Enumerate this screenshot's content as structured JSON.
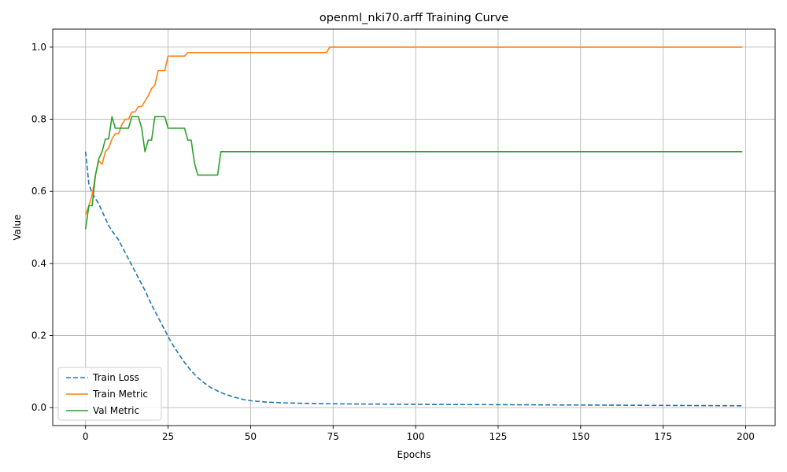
{
  "chart_data": {
    "type": "line",
    "title": "openml_nki70.arff Training Curve",
    "xlabel": "Epochs",
    "ylabel": "Value",
    "xlim": [
      -9.95,
      208.95
    ],
    "ylim": [
      -0.05,
      1.05
    ],
    "xticks": [
      0,
      25,
      50,
      75,
      100,
      125,
      150,
      175,
      200
    ],
    "yticks": [
      0.0,
      0.2,
      0.4,
      0.6,
      0.8,
      1.0
    ],
    "grid": true,
    "legend_position": "lower-left",
    "series": [
      {
        "name": "Train Loss",
        "color": "#1f77b4",
        "dash": "dashed",
        "points": [
          [
            0,
            0.71
          ],
          [
            1,
            0.62
          ],
          [
            2,
            0.595
          ],
          [
            3,
            0.58
          ],
          [
            4,
            0.565
          ],
          [
            5,
            0.545
          ],
          [
            6,
            0.525
          ],
          [
            7,
            0.505
          ],
          [
            8,
            0.49
          ],
          [
            9,
            0.478
          ],
          [
            10,
            0.465
          ],
          [
            12,
            0.43
          ],
          [
            14,
            0.395
          ],
          [
            16,
            0.36
          ],
          [
            18,
            0.325
          ],
          [
            20,
            0.285
          ],
          [
            22,
            0.25
          ],
          [
            24,
            0.215
          ],
          [
            26,
            0.18
          ],
          [
            28,
            0.152
          ],
          [
            30,
            0.125
          ],
          [
            32,
            0.102
          ],
          [
            34,
            0.083
          ],
          [
            36,
            0.068
          ],
          [
            38,
            0.055
          ],
          [
            40,
            0.046
          ],
          [
            42,
            0.038
          ],
          [
            45,
            0.029
          ],
          [
            48,
            0.022
          ],
          [
            50,
            0.019
          ],
          [
            55,
            0.015
          ],
          [
            60,
            0.013
          ],
          [
            70,
            0.011
          ],
          [
            80,
            0.01
          ],
          [
            100,
            0.009
          ],
          [
            125,
            0.008
          ],
          [
            150,
            0.007
          ],
          [
            175,
            0.006
          ],
          [
            199,
            0.005
          ]
        ]
      },
      {
        "name": "Train Metric",
        "color": "#ff7f0e",
        "dash": "solid",
        "points": [
          [
            0,
            0.535
          ],
          [
            1,
            0.56
          ],
          [
            2,
            0.59
          ],
          [
            3,
            0.645
          ],
          [
            4,
            0.685
          ],
          [
            5,
            0.675
          ],
          [
            6,
            0.71
          ],
          [
            7,
            0.72
          ],
          [
            8,
            0.745
          ],
          [
            9,
            0.76
          ],
          [
            10,
            0.76
          ],
          [
            11,
            0.785
          ],
          [
            12,
            0.8
          ],
          [
            13,
            0.8
          ],
          [
            14,
            0.82
          ],
          [
            15,
            0.82
          ],
          [
            16,
            0.835
          ],
          [
            17,
            0.835
          ],
          [
            18,
            0.85
          ],
          [
            19,
            0.865
          ],
          [
            20,
            0.885
          ],
          [
            21,
            0.895
          ],
          [
            22,
            0.935
          ],
          [
            23,
            0.935
          ],
          [
            24,
            0.935
          ],
          [
            25,
            0.975
          ],
          [
            26,
            0.975
          ],
          [
            27,
            0.975
          ],
          [
            28,
            0.975
          ],
          [
            29,
            0.975
          ],
          [
            30,
            0.975
          ],
          [
            31,
            0.985
          ],
          [
            32,
            0.985
          ],
          [
            73,
            0.985
          ],
          [
            74,
            1.0
          ],
          [
            199,
            1.0
          ]
        ]
      },
      {
        "name": "Val Metric",
        "color": "#2ca02c",
        "dash": "solid",
        "points": [
          [
            0,
            0.495
          ],
          [
            1,
            0.56
          ],
          [
            2,
            0.56
          ],
          [
            3,
            0.645
          ],
          [
            4,
            0.69
          ],
          [
            5,
            0.71
          ],
          [
            6,
            0.745
          ],
          [
            7,
            0.745
          ],
          [
            8,
            0.807
          ],
          [
            9,
            0.775
          ],
          [
            10,
            0.775
          ],
          [
            11,
            0.775
          ],
          [
            12,
            0.775
          ],
          [
            13,
            0.775
          ],
          [
            14,
            0.807
          ],
          [
            15,
            0.807
          ],
          [
            16,
            0.807
          ],
          [
            17,
            0.775
          ],
          [
            18,
            0.71
          ],
          [
            19,
            0.742
          ],
          [
            20,
            0.742
          ],
          [
            21,
            0.807
          ],
          [
            22,
            0.807
          ],
          [
            23,
            0.807
          ],
          [
            24,
            0.807
          ],
          [
            25,
            0.775
          ],
          [
            26,
            0.775
          ],
          [
            27,
            0.775
          ],
          [
            28,
            0.775
          ],
          [
            29,
            0.775
          ],
          [
            30,
            0.775
          ],
          [
            31,
            0.742
          ],
          [
            32,
            0.742
          ],
          [
            33,
            0.678
          ],
          [
            34,
            0.645
          ],
          [
            35,
            0.645
          ],
          [
            36,
            0.645
          ],
          [
            37,
            0.645
          ],
          [
            38,
            0.645
          ],
          [
            39,
            0.645
          ],
          [
            40,
            0.645
          ],
          [
            41,
            0.71
          ],
          [
            199,
            0.71
          ]
        ]
      }
    ]
  }
}
